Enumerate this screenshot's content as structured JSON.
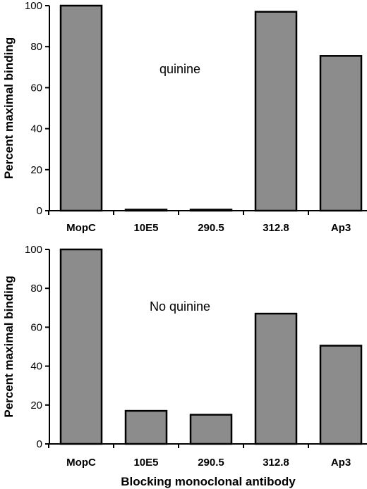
{
  "chart_data": [
    {
      "type": "bar",
      "categories": [
        "MopC",
        "10E5",
        "290.5",
        "312.8",
        "Ap3"
      ],
      "values": [
        100,
        0.5,
        0.5,
        97,
        75.5
      ],
      "ylabel": "Percent maximal binding",
      "xlabel": "",
      "yticks": [
        "0",
        "20",
        "40",
        "60",
        "80",
        "100"
      ],
      "ylim": [
        0,
        100
      ],
      "annotation": "quinine",
      "grid": false,
      "bar_color": "#8c8c8c"
    },
    {
      "type": "bar",
      "categories": [
        "MopC",
        "10E5",
        "290.5",
        "312.8",
        "Ap3"
      ],
      "values": [
        100,
        17,
        15,
        67,
        50.5
      ],
      "ylabel": "Percent maximal binding",
      "xlabel": "Blocking monoclonal antibody",
      "yticks": [
        "0",
        "20",
        "40",
        "60",
        "80",
        "100"
      ],
      "ylim": [
        0,
        100
      ],
      "annotation": "No quinine",
      "grid": false,
      "bar_color": "#8c8c8c"
    }
  ]
}
